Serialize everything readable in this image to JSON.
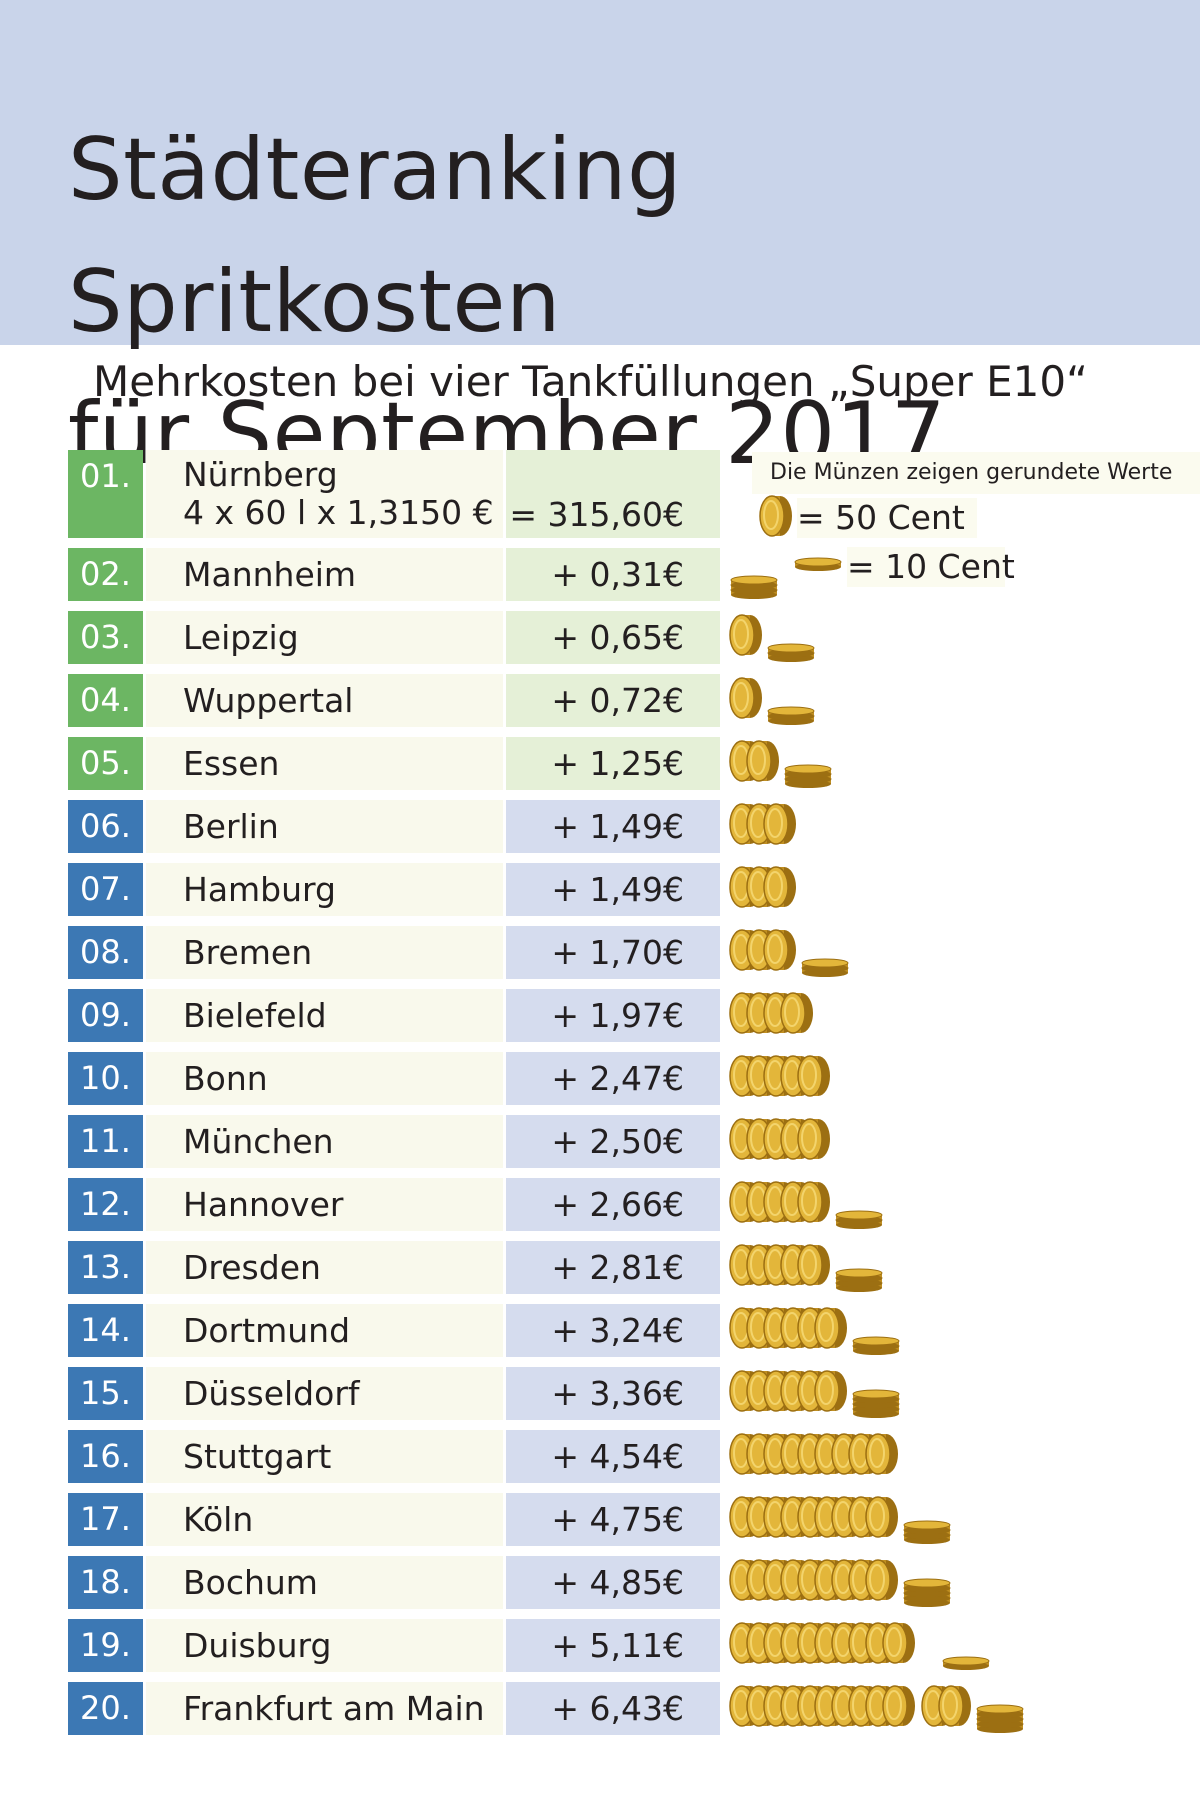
{
  "header": {
    "title": "Städteranking Spritkosten\nfür September 2017",
    "subtitle": "Mehrkosten bei vier Tankfüllungen „Super E10“"
  },
  "legend": {
    "note": "Die Münzen zeigen gerundete Werte",
    "coin_50_label": "= 50 Cent",
    "coin_10_label": "= 10 Cent"
  },
  "colors": {
    "header_bg": "#c9d4ea",
    "rank_green": "#6cb663",
    "rank_blue": "#3c78b4",
    "value_green": "#e5f0d7",
    "value_blue": "#d5dcee",
    "city_bg": "#f9f9ec",
    "coin_gold": "#e3b63a"
  },
  "base": {
    "rank": "01.",
    "city": "Nürnberg",
    "formula": "4 x 60 l x 1,3150 €",
    "total": "= 315,60€"
  },
  "rows": [
    {
      "rank": "02.",
      "city": "Mannheim",
      "value_label": "+ 0,31€"
    },
    {
      "rank": "03.",
      "city": "Leipzig",
      "value_label": "+ 0,65€"
    },
    {
      "rank": "04.",
      "city": "Wuppertal",
      "value_label": "+ 0,72€"
    },
    {
      "rank": "05.",
      "city": "Essen",
      "value_label": "+ 1,25€"
    },
    {
      "rank": "06.",
      "city": "Berlin",
      "value_label": "+ 1,49€"
    },
    {
      "rank": "07.",
      "city": "Hamburg",
      "value_label": "+ 1,49€"
    },
    {
      "rank": "08.",
      "city": "Bremen",
      "value_label": "+ 1,70€"
    },
    {
      "rank": "09.",
      "city": "Bielefeld",
      "value_label": "+ 1,97€"
    },
    {
      "rank": "10.",
      "city": "Bonn",
      "value_label": "+ 2,47€"
    },
    {
      "rank": "11.",
      "city": "München",
      "value_label": "+ 2,50€"
    },
    {
      "rank": "12.",
      "city": "Hannover",
      "value_label": "+ 2,66€"
    },
    {
      "rank": "13.",
      "city": "Dresden",
      "value_label": "+ 2,81€"
    },
    {
      "rank": "14.",
      "city": "Dortmund",
      "value_label": "+ 3,24€"
    },
    {
      "rank": "15.",
      "city": "Düsseldorf",
      "value_label": "+ 3,36€"
    },
    {
      "rank": "16.",
      "city": "Stuttgart",
      "value_label": "+ 4,54€"
    },
    {
      "rank": "17.",
      "city": "Köln",
      "value_label": "+ 4,75€"
    },
    {
      "rank": "18.",
      "city": "Bochum",
      "value_label": "+ 4,85€"
    },
    {
      "rank": "19.",
      "city": "Duisburg",
      "value_label": "+ 5,11€"
    },
    {
      "rank": "20.",
      "city": "Frankfurt am Main",
      "value_label": "+ 6,43€"
    }
  ],
  "chart_data": {
    "type": "bar",
    "title": "Städteranking Spritkosten für September 2017",
    "subtitle": "Mehrkosten bei vier Tankfüllungen „Super E10“",
    "base": {
      "category": "Nürnberg",
      "value": 315.6
    },
    "categories": [
      "Mannheim",
      "Leipzig",
      "Wuppertal",
      "Essen",
      "Berlin",
      "Hamburg",
      "Bremen",
      "Bielefeld",
      "Bonn",
      "München",
      "Hannover",
      "Dresden",
      "Dortmund",
      "Düsseldorf",
      "Stuttgart",
      "Köln",
      "Bochum",
      "Duisburg",
      "Frankfurt am Main"
    ],
    "values": [
      0.31,
      0.65,
      0.72,
      1.25,
      1.49,
      1.49,
      1.7,
      1.97,
      2.47,
      2.5,
      2.66,
      2.81,
      3.24,
      3.36,
      4.54,
      4.75,
      4.85,
      5.11,
      6.43
    ],
    "coins": [
      {
        "coins_50": 0,
        "coins_10": 3
      },
      {
        "coins_50": 1,
        "coins_10": 2
      },
      {
        "coins_50": 1,
        "coins_10": 2
      },
      {
        "coins_50": 2,
        "coins_10": 3
      },
      {
        "coins_50": 3,
        "coins_10": 0
      },
      {
        "coins_50": 3,
        "coins_10": 0
      },
      {
        "coins_50": 3,
        "coins_10": 2
      },
      {
        "coins_50": 4,
        "coins_10": 0
      },
      {
        "coins_50": 5,
        "coins_10": 0
      },
      {
        "coins_50": 5,
        "coins_10": 0
      },
      {
        "coins_50": 5,
        "coins_10": 2
      },
      {
        "coins_50": 5,
        "coins_10": 3
      },
      {
        "coins_50": 6,
        "coins_10": 2
      },
      {
        "coins_50": 6,
        "coins_10": 4
      },
      {
        "coins_50": 9,
        "coins_10": 0
      },
      {
        "coins_50": 9,
        "coins_10": 3
      },
      {
        "coins_50": 9,
        "coins_10": 4
      },
      {
        "coins_50": 10,
        "coins_10": 1
      },
      {
        "coins_50": 12,
        "coins_10": 4
      }
    ],
    "units": {
      "coin_50": 0.5,
      "coin_10": 0.1
    }
  }
}
